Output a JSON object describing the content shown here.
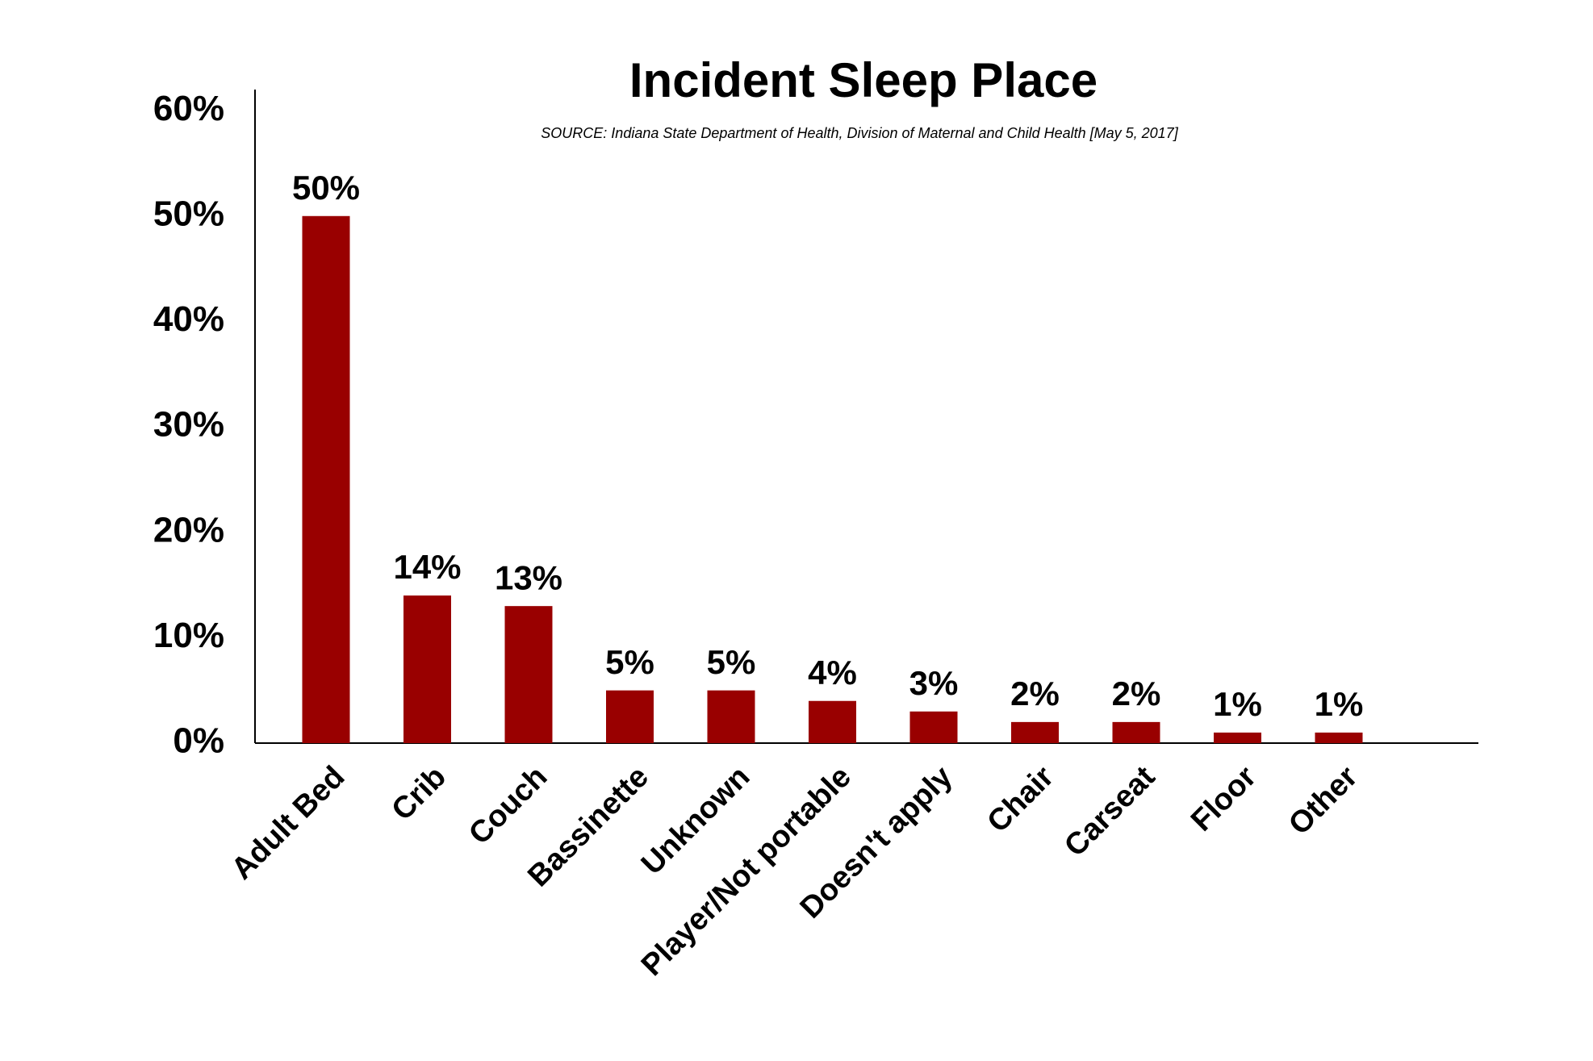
{
  "chart_data": {
    "type": "bar",
    "title": "Incident Sleep Place",
    "subtitle": "SOURCE: Indiana State Department of Health, Division of Maternal and Child Health [May 5, 2017]",
    "categories": [
      "Adult Bed",
      "Crib",
      "Couch",
      "Bassinette",
      "Unknown",
      "Player/Not portable",
      "Doesn't apply",
      "Chair",
      "Carseat",
      "Floor",
      "Other"
    ],
    "values": [
      50,
      14,
      13,
      5,
      5,
      4,
      3,
      2,
      2,
      1,
      1
    ],
    "value_labels": [
      "50%",
      "14%",
      "13%",
      "5%",
      "5%",
      "4%",
      "3%",
      "2%",
      "2%",
      "1%",
      "1%"
    ],
    "color": "#990000",
    "ylim": [
      0,
      62
    ],
    "yticks": [
      {
        "value": 0,
        "label": "0%"
      },
      {
        "value": 10,
        "label": "10%"
      },
      {
        "value": 20,
        "label": "20%"
      },
      {
        "value": 30,
        "label": "30%"
      },
      {
        "value": 40,
        "label": "40%"
      },
      {
        "value": 50,
        "label": "50%"
      },
      {
        "value": 60,
        "label": "60%"
      }
    ],
    "grid": false
  }
}
